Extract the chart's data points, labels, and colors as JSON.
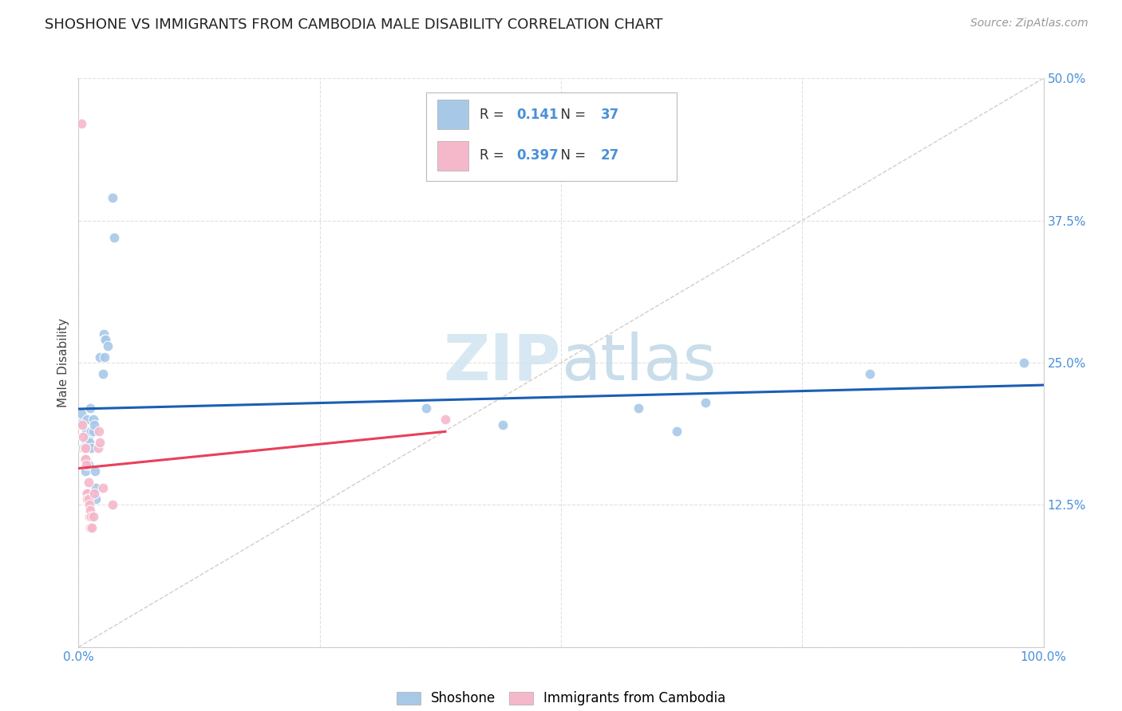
{
  "title": "SHOSHONE VS IMMIGRANTS FROM CAMBODIA MALE DISABILITY CORRELATION CHART",
  "source": "Source: ZipAtlas.com",
  "ylabel": "Male Disability",
  "xlim": [
    0.0,
    1.0
  ],
  "ylim": [
    0.0,
    0.5
  ],
  "x_ticks": [
    0.0,
    0.25,
    0.5,
    0.75,
    1.0
  ],
  "x_tick_labels": [
    "0.0%",
    "",
    "",
    "",
    "100.0%"
  ],
  "y_ticks": [
    0.0,
    0.125,
    0.25,
    0.375,
    0.5
  ],
  "y_tick_labels_right": [
    "",
    "12.5%",
    "25.0%",
    "37.5%",
    "50.0%"
  ],
  "legend_r_values": [
    "0.141",
    "0.397"
  ],
  "legend_n_values": [
    "37",
    "27"
  ],
  "shoshone_color": "#a8c8e8",
  "cambodia_color": "#f5b8ca",
  "shoshone_line_color": "#1a5fb4",
  "cambodia_line_color": "#e8405a",
  "diagonal_color": "#c8c0c0",
  "watermark_zip_color": "#d0e4f0",
  "watermark_atlas_color": "#c0d8e8",
  "shoshone_points": [
    [
      0.003,
      0.197
    ],
    [
      0.003,
      0.205
    ],
    [
      0.005,
      0.175
    ],
    [
      0.007,
      0.155
    ],
    [
      0.008,
      0.18
    ],
    [
      0.008,
      0.19
    ],
    [
      0.008,
      0.165
    ],
    [
      0.009,
      0.2
    ],
    [
      0.01,
      0.185
    ],
    [
      0.01,
      0.16
    ],
    [
      0.01,
      0.175
    ],
    [
      0.011,
      0.18
    ],
    [
      0.012,
      0.21
    ],
    [
      0.013,
      0.175
    ],
    [
      0.013,
      0.19
    ],
    [
      0.015,
      0.19
    ],
    [
      0.015,
      0.2
    ],
    [
      0.016,
      0.195
    ],
    [
      0.017,
      0.155
    ],
    [
      0.018,
      0.13
    ],
    [
      0.018,
      0.14
    ],
    [
      0.022,
      0.255
    ],
    [
      0.025,
      0.24
    ],
    [
      0.026,
      0.275
    ],
    [
      0.027,
      0.27
    ],
    [
      0.027,
      0.255
    ],
    [
      0.028,
      0.27
    ],
    [
      0.03,
      0.265
    ],
    [
      0.035,
      0.395
    ],
    [
      0.037,
      0.36
    ],
    [
      0.36,
      0.21
    ],
    [
      0.44,
      0.195
    ],
    [
      0.58,
      0.21
    ],
    [
      0.62,
      0.19
    ],
    [
      0.65,
      0.215
    ],
    [
      0.82,
      0.24
    ],
    [
      0.98,
      0.25
    ]
  ],
  "cambodia_points": [
    [
      0.003,
      0.46
    ],
    [
      0.004,
      0.195
    ],
    [
      0.005,
      0.185
    ],
    [
      0.006,
      0.175
    ],
    [
      0.006,
      0.165
    ],
    [
      0.007,
      0.165
    ],
    [
      0.007,
      0.175
    ],
    [
      0.008,
      0.16
    ],
    [
      0.008,
      0.135
    ],
    [
      0.009,
      0.135
    ],
    [
      0.009,
      0.13
    ],
    [
      0.01,
      0.145
    ],
    [
      0.01,
      0.13
    ],
    [
      0.011,
      0.125
    ],
    [
      0.011,
      0.115
    ],
    [
      0.012,
      0.12
    ],
    [
      0.012,
      0.105
    ],
    [
      0.013,
      0.115
    ],
    [
      0.014,
      0.105
    ],
    [
      0.015,
      0.115
    ],
    [
      0.016,
      0.135
    ],
    [
      0.02,
      0.175
    ],
    [
      0.021,
      0.19
    ],
    [
      0.022,
      0.18
    ],
    [
      0.025,
      0.14
    ],
    [
      0.035,
      0.125
    ],
    [
      0.38,
      0.2
    ]
  ],
  "background_color": "#ffffff",
  "grid_color": "#e0e0e0",
  "title_fontsize": 13,
  "axis_label_fontsize": 11,
  "tick_fontsize": 11,
  "source_fontsize": 10,
  "legend_fontsize": 12,
  "marker_size": 85,
  "tick_color": "#4a90d9"
}
